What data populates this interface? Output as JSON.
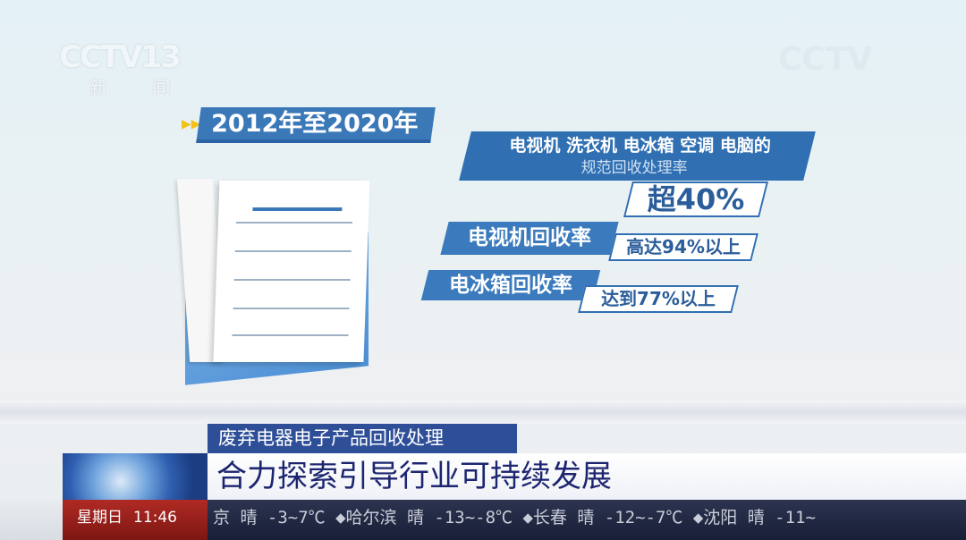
{
  "channel_logo": {
    "text": "CCTV13",
    "subtitle": "新 闻"
  },
  "watermark": "CCTV",
  "infographic": {
    "period": "2012年至2020年",
    "overall": {
      "line1": "电视机 洗衣机 电冰箱 空调 电脑的",
      "line2": "规范回收处理率",
      "value": "超40%"
    },
    "tv": {
      "label": "电视机回收率",
      "value": "高达94%以上"
    },
    "fridge": {
      "label": "电冰箱回收率",
      "value": "达到77%以上"
    }
  },
  "lower_third": {
    "subtitle": "废弃电器电子产品回收处理",
    "title": "合力探索引导行业可持续发展"
  },
  "ticker": {
    "day": "星期日",
    "time": "11:46",
    "weather": "京 晴 -3~7℃ ◆哈尔滨 晴 -13~-8℃ ◆长春 晴 -12~-7℃ ◆沈阳 晴 -11~"
  },
  "colors": {
    "accent_blue": "#2f6fb2",
    "title_navy": "#1d2570",
    "ticker_red": "#b02a24"
  }
}
